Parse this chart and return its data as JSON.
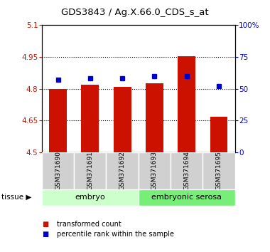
{
  "title": "GDS3843 / Ag.X.66.0_CDS_s_at",
  "samples": [
    "GSM371690",
    "GSM371691",
    "GSM371692",
    "GSM371693",
    "GSM371694",
    "GSM371695"
  ],
  "transformed_counts": [
    4.8,
    4.82,
    4.808,
    4.825,
    4.955,
    4.668
  ],
  "percentile_ranks": [
    57,
    58,
    58,
    60,
    60,
    52
  ],
  "ylim_left": [
    4.5,
    5.1
  ],
  "ylim_right": [
    0,
    100
  ],
  "yticks_left": [
    4.5,
    4.65,
    4.8,
    4.95,
    5.1
  ],
  "yticks_right": [
    0,
    25,
    50,
    75,
    100
  ],
  "ytick_labels_left": [
    "4.5",
    "4.65",
    "4.8",
    "4.95",
    "5.1"
  ],
  "ytick_labels_right": [
    "0",
    "25",
    "50",
    "75",
    "100%"
  ],
  "bar_color": "#cc1100",
  "dot_color": "#0000cc",
  "bar_width": 0.55,
  "grid_linestyle": "dotted",
  "tissue_label": "tissue",
  "ylabel_left_color": "#cc1100",
  "ylabel_right_color": "#0000cc",
  "group_info": [
    {
      "label": "embryo",
      "start": 0,
      "end": 2,
      "color": "#ccffcc"
    },
    {
      "label": "embryonic serosa",
      "start": 3,
      "end": 5,
      "color": "#77ee77"
    }
  ],
  "legend_items": [
    {
      "label": "transformed count",
      "color": "#cc1100"
    },
    {
      "label": "percentile rank within the sample",
      "color": "#0000cc"
    }
  ]
}
